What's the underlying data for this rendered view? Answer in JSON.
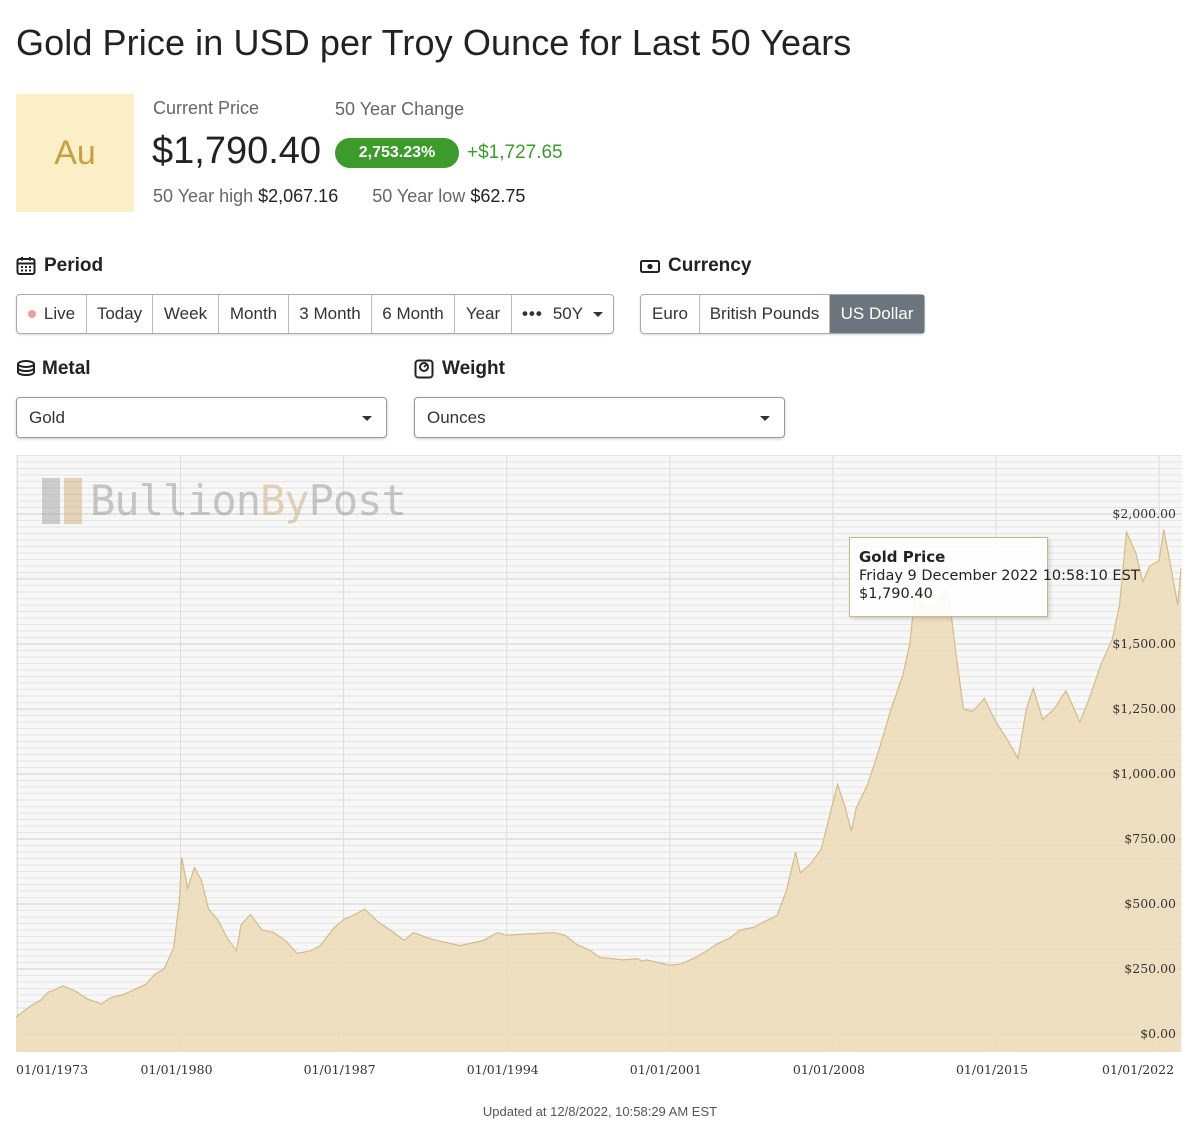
{
  "page": {
    "title": "Gold Price in USD per Troy Ounce for Last 50 Years",
    "symbol": "Au"
  },
  "summary": {
    "current_label": "Current Price",
    "current_price": "$1,790.40",
    "change_label": "50 Year Change",
    "change_pct": "2,753.23%",
    "change_abs": "+$1,727.65",
    "high_label": "50 Year high",
    "high_value": "$2,067.16",
    "low_label": "50 Year low",
    "low_value": "$62.75"
  },
  "period": {
    "heading": "Period",
    "options": [
      "Live",
      "Today",
      "Week",
      "Month",
      "3 Month",
      "6 Month",
      "Year",
      "50Y"
    ],
    "more_glyph": "•••",
    "selected": "50Y"
  },
  "currency": {
    "heading": "Currency",
    "options": [
      "Euro",
      "British Pounds",
      "US Dollar"
    ],
    "selected": "US Dollar"
  },
  "metal": {
    "heading": "Metal",
    "selected": "Gold"
  },
  "weight": {
    "heading": "Weight",
    "selected": "Ounces"
  },
  "watermark": {
    "brand_a": "Bullion",
    "brand_b": "By",
    "brand_c": "Post"
  },
  "tooltip": {
    "title": "Gold Price",
    "date": "Friday 9 December 2022 10:58:10 EST",
    "price": "$1,790.40"
  },
  "footer": {
    "updated": "Updated at 12/8/2022, 10:58:29 AM EST"
  },
  "colors": {
    "accent_green": "#3d9b2b",
    "area_fill": "#ecdcba",
    "area_line": "#d4bb8a",
    "active_button": "#6c757d"
  },
  "chart_data": {
    "type": "area",
    "title": "",
    "xlabel": "",
    "ylabel": "",
    "ylim": [
      0,
      2250
    ],
    "y_ticks": [
      0,
      250,
      500,
      750,
      1000,
      1250,
      1500,
      2000
    ],
    "y_tick_labels": [
      "$0.00",
      "$250.00",
      "$500.00",
      "$750.00",
      "$1,000.00",
      "$1,250.00",
      "$1,500.00",
      "$2,000.00"
    ],
    "x_tick_labels": [
      "01/01/1973",
      "01/01/1980",
      "01/01/1987",
      "01/01/1994",
      "01/01/2001",
      "01/01/2008",
      "01/01/2015",
      "01/01/2022"
    ],
    "x_tick_years": [
      1973,
      1980,
      1987,
      1994,
      2001,
      2008,
      2015,
      2022
    ],
    "grid": true,
    "series": [
      {
        "x": [
          1972.94,
          1973.3,
          1973.6,
          1974.0,
          1974.3,
          1974.6,
          1974.95,
          1975.5,
          1976.0,
          1976.6,
          1977.0,
          1977.5,
          1978.0,
          1978.5,
          1978.9,
          1979.3,
          1979.7,
          1979.95,
          1980.05,
          1980.3,
          1980.6,
          1980.9,
          1981.2,
          1981.6,
          1982.0,
          1982.4,
          1982.6,
          1983.0,
          1983.5,
          1984.0,
          1984.5,
          1985.0,
          1985.6,
          1986.0,
          1986.6,
          1987.0,
          1987.5,
          1987.9,
          1988.5,
          1989.0,
          1989.6,
          1990.0,
          1990.6,
          1991.0,
          1992.0,
          1993.0,
          1993.6,
          1994.0,
          1995.0,
          1996.0,
          1996.5,
          1997.0,
          1997.6,
          1998.0,
          1999.0,
          1999.6,
          1999.8,
          2000.0,
          2000.5,
          2001.0,
          2001.5,
          2002.0,
          2002.6,
          2003.0,
          2003.6,
          2004.0,
          2004.6,
          2005.0,
          2005.6,
          2006.0,
          2006.4,
          2006.6,
          2007.0,
          2007.5,
          2008.0,
          2008.2,
          2008.5,
          2008.8,
          2009.0,
          2009.5,
          2010.0,
          2010.5,
          2011.0,
          2011.3,
          2011.65,
          2011.9,
          2012.3,
          2012.8,
          2013.0,
          2013.3,
          2013.6,
          2014.0,
          2014.5,
          2015.0,
          2015.5,
          2015.95,
          2016.3,
          2016.6,
          2017.0,
          2017.5,
          2018.0,
          2018.6,
          2019.0,
          2019.5,
          2020.0,
          2020.3,
          2020.6,
          2021.0,
          2021.3,
          2021.6,
          2022.0,
          2022.2,
          2022.5,
          2022.8,
          2022.94
        ],
        "y": [
          65,
          90,
          110,
          130,
          160,
          170,
          185,
          165,
          135,
          115,
          140,
          150,
          170,
          190,
          230,
          250,
          330,
          510,
          680,
          560,
          640,
          590,
          480,
          440,
          370,
          320,
          420,
          460,
          400,
          390,
          360,
          310,
          320,
          340,
          410,
          440,
          460,
          480,
          430,
          400,
          360,
          390,
          370,
          360,
          340,
          360,
          390,
          380,
          385,
          390,
          380,
          345,
          320,
          295,
          285,
          290,
          280,
          285,
          275,
          265,
          270,
          290,
          320,
          345,
          370,
          400,
          410,
          430,
          455,
          550,
          700,
          620,
          650,
          710,
          890,
          960,
          880,
          780,
          870,
          960,
          1100,
          1250,
          1380,
          1500,
          1800,
          1650,
          1620,
          1710,
          1670,
          1450,
          1250,
          1240,
          1290,
          1200,
          1130,
          1060,
          1250,
          1330,
          1210,
          1250,
          1320,
          1200,
          1290,
          1420,
          1520,
          1650,
          1930,
          1850,
          1740,
          1800,
          1820,
          1940,
          1800,
          1650,
          1790.4
        ]
      }
    ]
  }
}
